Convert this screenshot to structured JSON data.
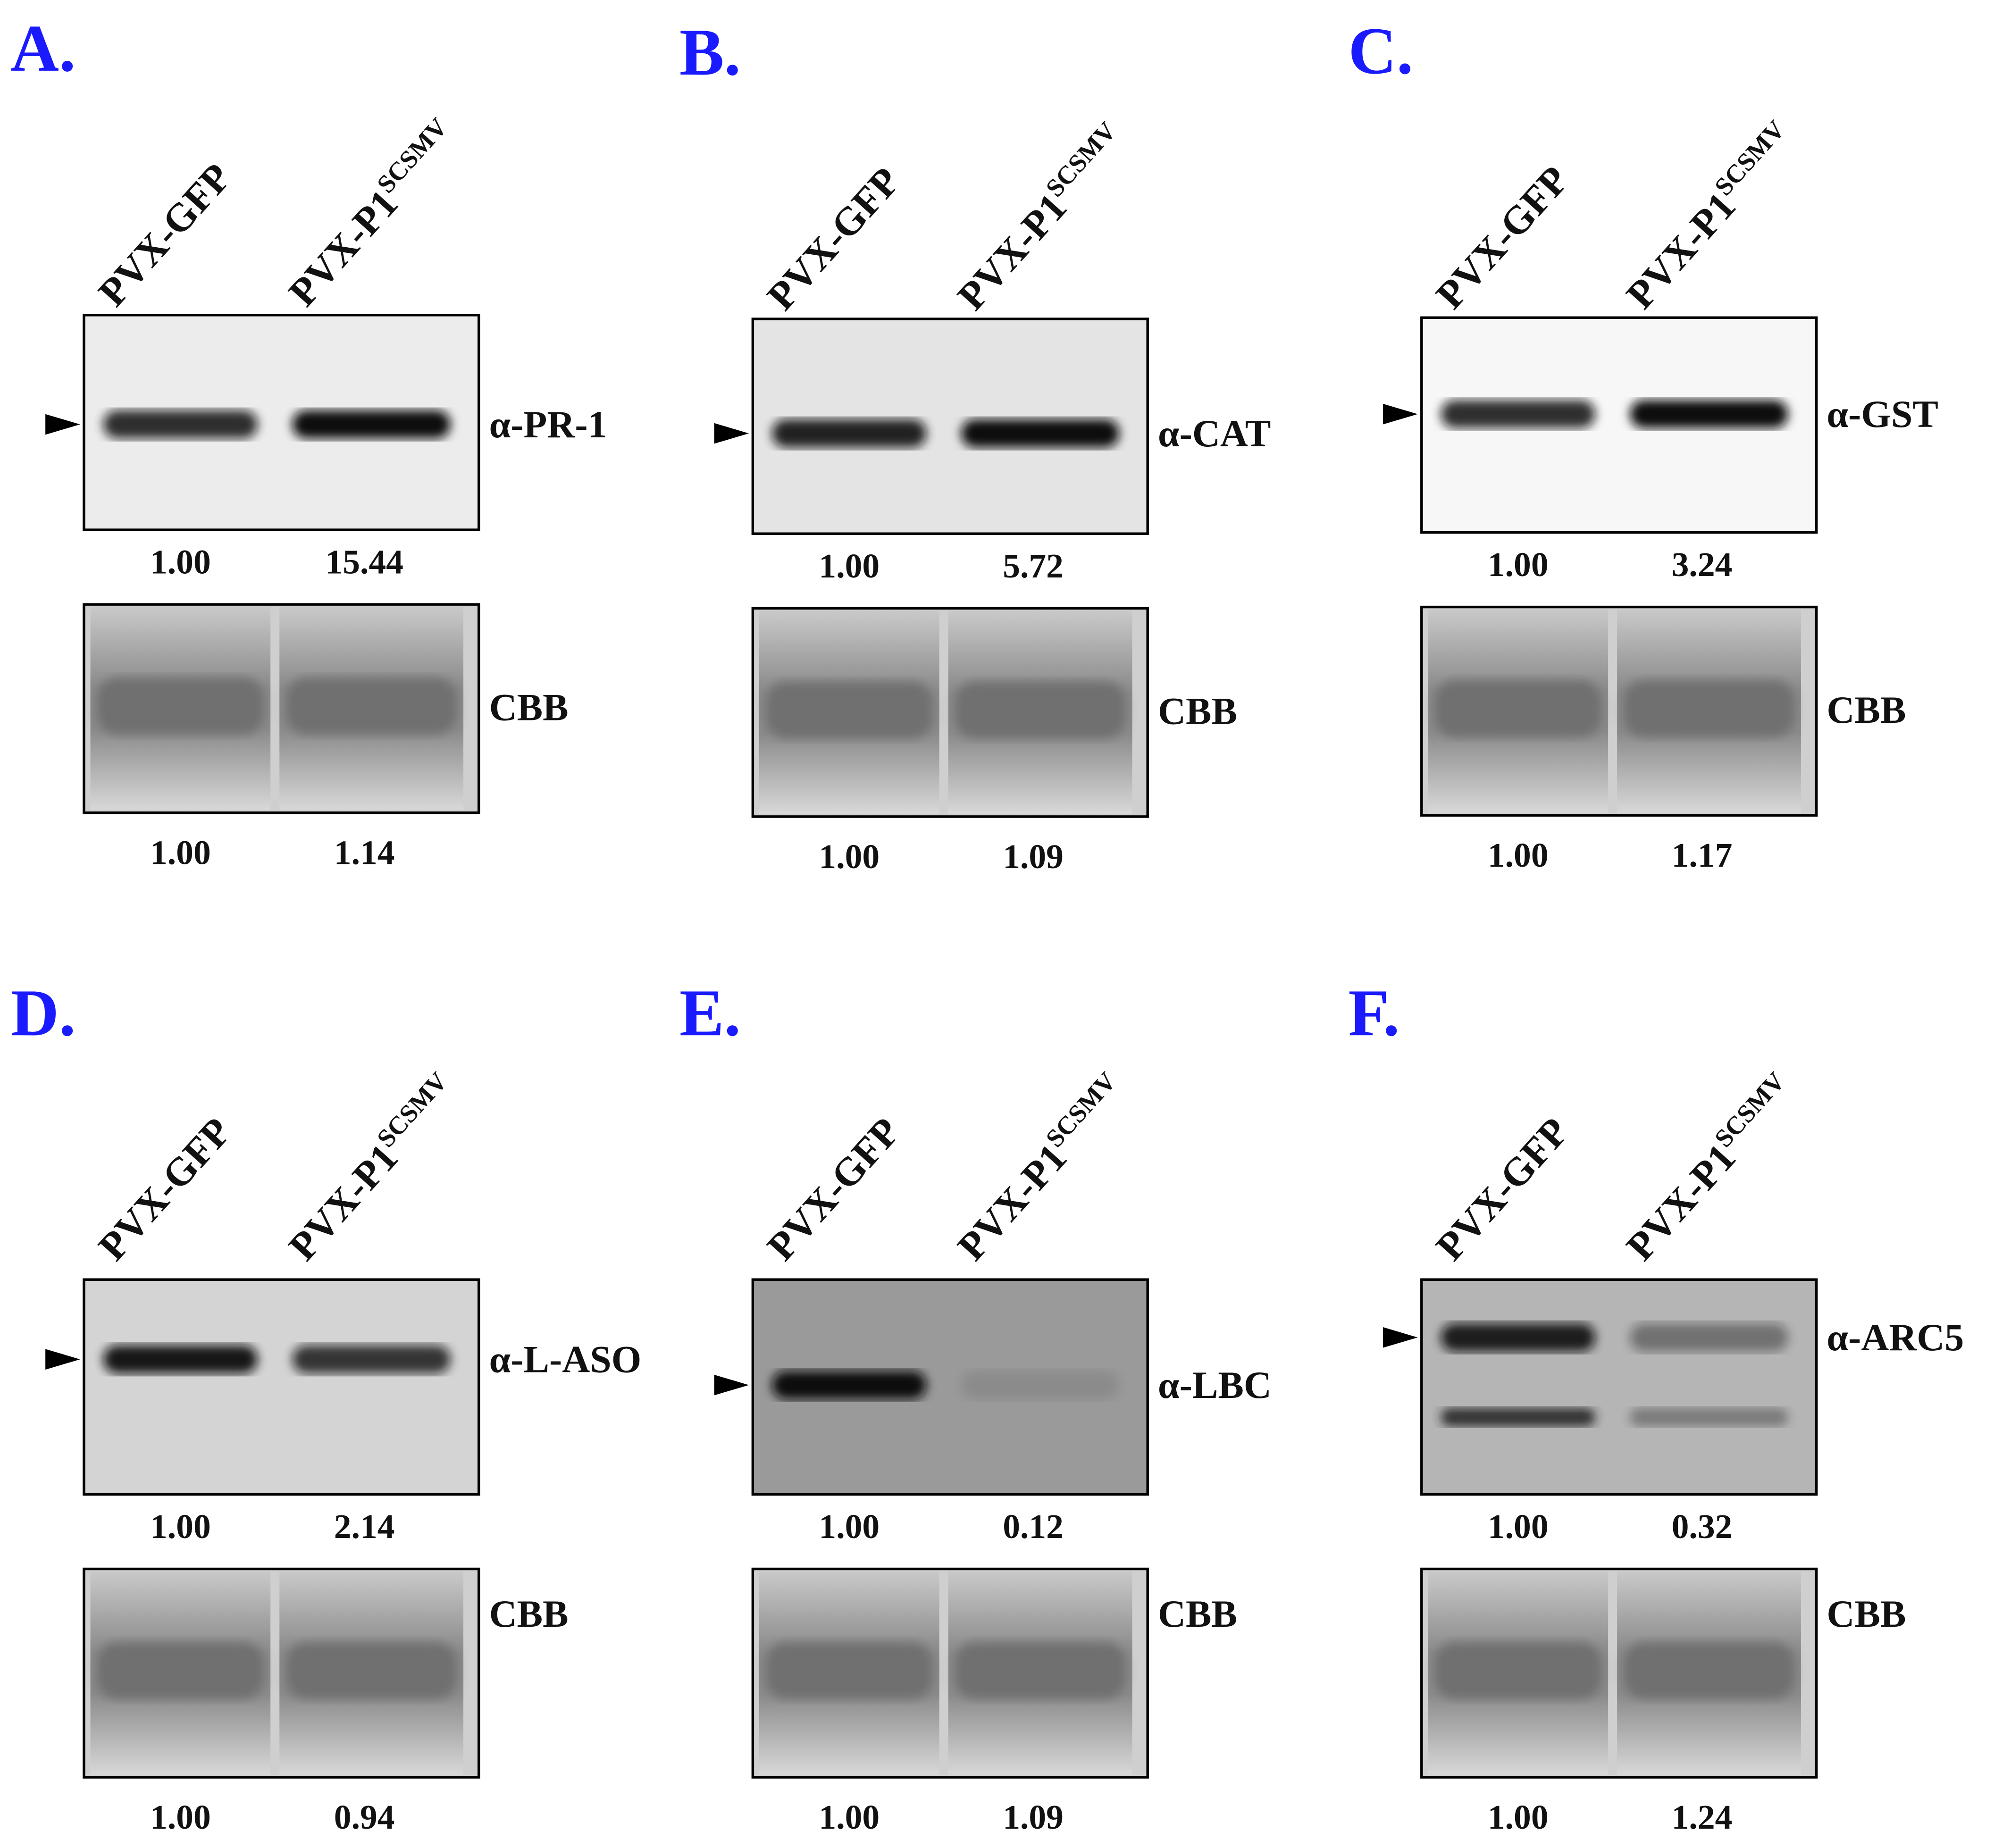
{
  "panels": [
    {
      "label": "A.",
      "lanes": [
        {
          "text": "PVX-GFP"
        },
        {
          "text": "PVX-P1",
          "sup": "SCSMV"
        }
      ],
      "antibody": "α-PR-1",
      "blot_values": [
        "1.00",
        "15.44"
      ],
      "stain": "CBB",
      "stain_values": [
        "1.00",
        "1.14"
      ]
    },
    {
      "label": "B.",
      "lanes": [
        {
          "text": "PVX-GFP"
        },
        {
          "text": "PVX-P1",
          "sup": "SCSMV"
        }
      ],
      "antibody": "α-CAT",
      "blot_values": [
        "1.00",
        "5.72"
      ],
      "stain": "CBB",
      "stain_values": [
        "1.00",
        "1.09"
      ]
    },
    {
      "label": "C.",
      "lanes": [
        {
          "text": "PVX-GFP"
        },
        {
          "text": "PVX-P1",
          "sup": "SCSMV"
        }
      ],
      "antibody": "α-GST",
      "blot_values": [
        "1.00",
        "3.24"
      ],
      "stain": "CBB",
      "stain_values": [
        "1.00",
        "1.17"
      ]
    },
    {
      "label": "D.",
      "lanes": [
        {
          "text": "PVX-GFP"
        },
        {
          "text": "PVX-P1",
          "sup": "SCSMV"
        }
      ],
      "antibody": "α-L-ASO",
      "blot_values": [
        "1.00",
        "2.14"
      ],
      "stain": "CBB",
      "stain_values": [
        "1.00",
        "0.94"
      ]
    },
    {
      "label": "E.",
      "lanes": [
        {
          "text": "PVX-GFP"
        },
        {
          "text": "PVX-P1",
          "sup": "SCSMV"
        }
      ],
      "antibody": "α-LBC",
      "blot_values": [
        "1.00",
        "0.12"
      ],
      "stain": "CBB",
      "stain_values": [
        "1.00",
        "1.09"
      ]
    },
    {
      "label": "F.",
      "lanes": [
        {
          "text": "PVX-GFP"
        },
        {
          "text": "PVX-P1",
          "sup": "SCSMV"
        }
      ],
      "antibody": "α-ARC5",
      "blot_values": [
        "1.00",
        "0.32"
      ],
      "stain": "CBB",
      "stain_values": [
        "1.00",
        "1.24"
      ]
    }
  ]
}
